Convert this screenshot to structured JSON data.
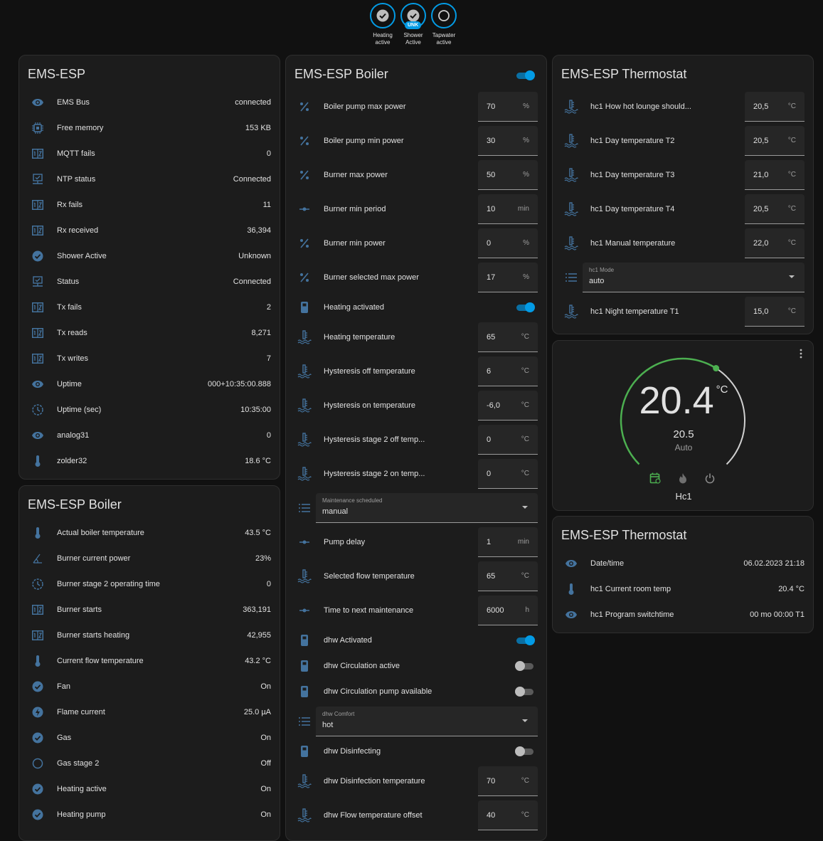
{
  "badges": [
    {
      "label": "Heating active",
      "state": "on"
    },
    {
      "label": "Shower Active",
      "state": "unknown",
      "tag": "UNK"
    },
    {
      "label": "Tapwater active",
      "state": "off"
    }
  ],
  "colors": {
    "accent": "#039be5",
    "icon": "#44739e",
    "heat": "#4caf50",
    "background": "#111111",
    "card": "#1c1c1c"
  },
  "card_system": {
    "title": "EMS-ESP",
    "rows": [
      {
        "icon": "eye",
        "name": "EMS Bus",
        "value": "connected"
      },
      {
        "icon": "chip",
        "name": "Free memory",
        "value": "153 KB"
      },
      {
        "icon": "counter",
        "name": "MQTT fails",
        "value": "0"
      },
      {
        "icon": "monitor",
        "name": "NTP status",
        "value": "Connected"
      },
      {
        "icon": "counter",
        "name": "Rx fails",
        "value": "11"
      },
      {
        "icon": "counter",
        "name": "Rx received",
        "value": "36,394"
      },
      {
        "icon": "check",
        "name": "Shower Active",
        "value": "Unknown"
      },
      {
        "icon": "monitor",
        "name": "Status",
        "value": "Connected"
      },
      {
        "icon": "counter",
        "name": "Tx fails",
        "value": "2"
      },
      {
        "icon": "counter",
        "name": "Tx reads",
        "value": "8,271"
      },
      {
        "icon": "counter",
        "name": "Tx writes",
        "value": "7"
      },
      {
        "icon": "eye",
        "name": "Uptime",
        "value": "000+10:35:00.888"
      },
      {
        "icon": "clock",
        "name": "Uptime (sec)",
        "value": "10:35:00"
      },
      {
        "icon": "eye",
        "name": "analog31",
        "value": "0"
      },
      {
        "icon": "thermometer",
        "name": "zolder32",
        "value": "18.6 °C"
      }
    ]
  },
  "card_boiler_sensors": {
    "title": "EMS-ESP Boiler",
    "rows": [
      {
        "icon": "thermometer",
        "name": "Actual boiler temperature",
        "value": "43.5 °C"
      },
      {
        "icon": "angle",
        "name": "Burner current power",
        "value": "23%"
      },
      {
        "icon": "clock",
        "name": "Burner stage 2 operating time",
        "value": "0"
      },
      {
        "icon": "counter",
        "name": "Burner starts",
        "value": "363,191"
      },
      {
        "icon": "counter",
        "name": "Burner starts heating",
        "value": "42,955"
      },
      {
        "icon": "thermometer",
        "name": "Current flow temperature",
        "value": "43.2 °C"
      },
      {
        "icon": "check",
        "name": "Fan",
        "value": "On"
      },
      {
        "icon": "flash",
        "name": "Flame current",
        "value": "25.0 µA"
      },
      {
        "icon": "check",
        "name": "Gas",
        "value": "On"
      },
      {
        "icon": "circle",
        "name": "Gas stage 2",
        "value": "Off"
      },
      {
        "icon": "check",
        "name": "Heating active",
        "value": "On"
      },
      {
        "icon": "check",
        "name": "Heating pump",
        "value": "On"
      }
    ]
  },
  "card_boiler_controls": {
    "title": "EMS-ESP Boiler",
    "header_toggle": true,
    "rows": [
      {
        "type": "input",
        "icon": "percent",
        "name": "Boiler pump max power",
        "value": "70",
        "unit": "%"
      },
      {
        "type": "input",
        "icon": "percent",
        "name": "Boiler pump min power",
        "value": "30",
        "unit": "%"
      },
      {
        "type": "input",
        "icon": "percent",
        "name": "Burner max power",
        "value": "50",
        "unit": "%"
      },
      {
        "type": "input",
        "icon": "slider",
        "name": "Burner min period",
        "value": "10",
        "unit": "min"
      },
      {
        "type": "input",
        "icon": "percent",
        "name": "Burner min power",
        "value": "0",
        "unit": "%"
      },
      {
        "type": "input",
        "icon": "percent",
        "name": "Burner selected max power",
        "value": "17",
        "unit": "%"
      },
      {
        "type": "toggle",
        "icon": "device",
        "name": "Heating activated",
        "on": true
      },
      {
        "type": "input",
        "icon": "water-thermo",
        "name": "Heating temperature",
        "value": "65",
        "unit": "°C"
      },
      {
        "type": "input",
        "icon": "water-thermo",
        "name": "Hysteresis off temperature",
        "value": "6",
        "unit": "°C"
      },
      {
        "type": "input",
        "icon": "water-thermo",
        "name": "Hysteresis on temperature",
        "value": "-6,0",
        "unit": "°C"
      },
      {
        "type": "input",
        "icon": "water-thermo",
        "name": "Hysteresis stage 2 off temp...",
        "value": "0",
        "unit": "°C"
      },
      {
        "type": "input",
        "icon": "water-thermo",
        "name": "Hysteresis stage 2 on temp...",
        "value": "0",
        "unit": "°C"
      },
      {
        "type": "select",
        "icon": "list",
        "name": "Maintenance scheduled",
        "value": "manual"
      },
      {
        "type": "input",
        "icon": "slider",
        "name": "Pump delay",
        "value": "1",
        "unit": "min"
      },
      {
        "type": "input",
        "icon": "water-thermo",
        "name": "Selected flow temperature",
        "value": "65",
        "unit": "°C"
      },
      {
        "type": "input",
        "icon": "slider",
        "name": "Time to next maintenance",
        "value": "6000",
        "unit": "h"
      },
      {
        "type": "toggle",
        "icon": "device",
        "name": "dhw Activated",
        "on": true
      },
      {
        "type": "toggle",
        "icon": "device",
        "name": "dhw Circulation active",
        "on": false
      },
      {
        "type": "toggle",
        "icon": "device",
        "name": "dhw Circulation pump available",
        "on": false
      },
      {
        "type": "select",
        "icon": "list",
        "name": "dhw Comfort",
        "value": "hot"
      },
      {
        "type": "toggle",
        "icon": "device",
        "name": "dhw Disinfecting",
        "on": false
      },
      {
        "type": "input",
        "icon": "water-thermo",
        "name": "dhw Disinfection temperature",
        "value": "70",
        "unit": "°C"
      },
      {
        "type": "input",
        "icon": "water-thermo",
        "name": "dhw Flow temperature offset",
        "value": "40",
        "unit": "°C"
      }
    ]
  },
  "card_thermostat_controls": {
    "title": "EMS-ESP Thermostat",
    "rows": [
      {
        "type": "input",
        "icon": "water-thermo",
        "name": "hc1 How hot lounge should...",
        "value": "20,5",
        "unit": "°C"
      },
      {
        "type": "input",
        "icon": "water-thermo",
        "name": "hc1 Day temperature T2",
        "value": "20,5",
        "unit": "°C"
      },
      {
        "type": "input",
        "icon": "water-thermo",
        "name": "hc1 Day temperature T3",
        "value": "21,0",
        "unit": "°C"
      },
      {
        "type": "input",
        "icon": "water-thermo",
        "name": "hc1 Day temperature T4",
        "value": "20,5",
        "unit": "°C"
      },
      {
        "type": "input",
        "icon": "water-thermo",
        "name": "hc1 Manual temperature",
        "value": "22,0",
        "unit": "°C"
      },
      {
        "type": "select",
        "icon": "list",
        "name": "hc1 Mode",
        "value": "auto"
      },
      {
        "type": "input",
        "icon": "water-thermo",
        "name": "hc1 Night temperature T1",
        "value": "15,0",
        "unit": "°C"
      }
    ]
  },
  "thermostat": {
    "current": "20.4",
    "unit": "°C",
    "target": "20.5",
    "mode": "Auto",
    "name": "Hc1",
    "min": 5,
    "max": 30,
    "modes": [
      "auto",
      "heat",
      "off"
    ]
  },
  "card_thermostat_sensors": {
    "title": "EMS-ESP Thermostat",
    "rows": [
      {
        "icon": "eye",
        "name": "Date/time",
        "value": "06.02.2023 21:18"
      },
      {
        "icon": "thermometer",
        "name": "hc1 Current room temp",
        "value": "20.4 °C"
      },
      {
        "icon": "eye",
        "name": "hc1 Program switchtime",
        "value": "00 mo 00:00 T1"
      }
    ]
  }
}
